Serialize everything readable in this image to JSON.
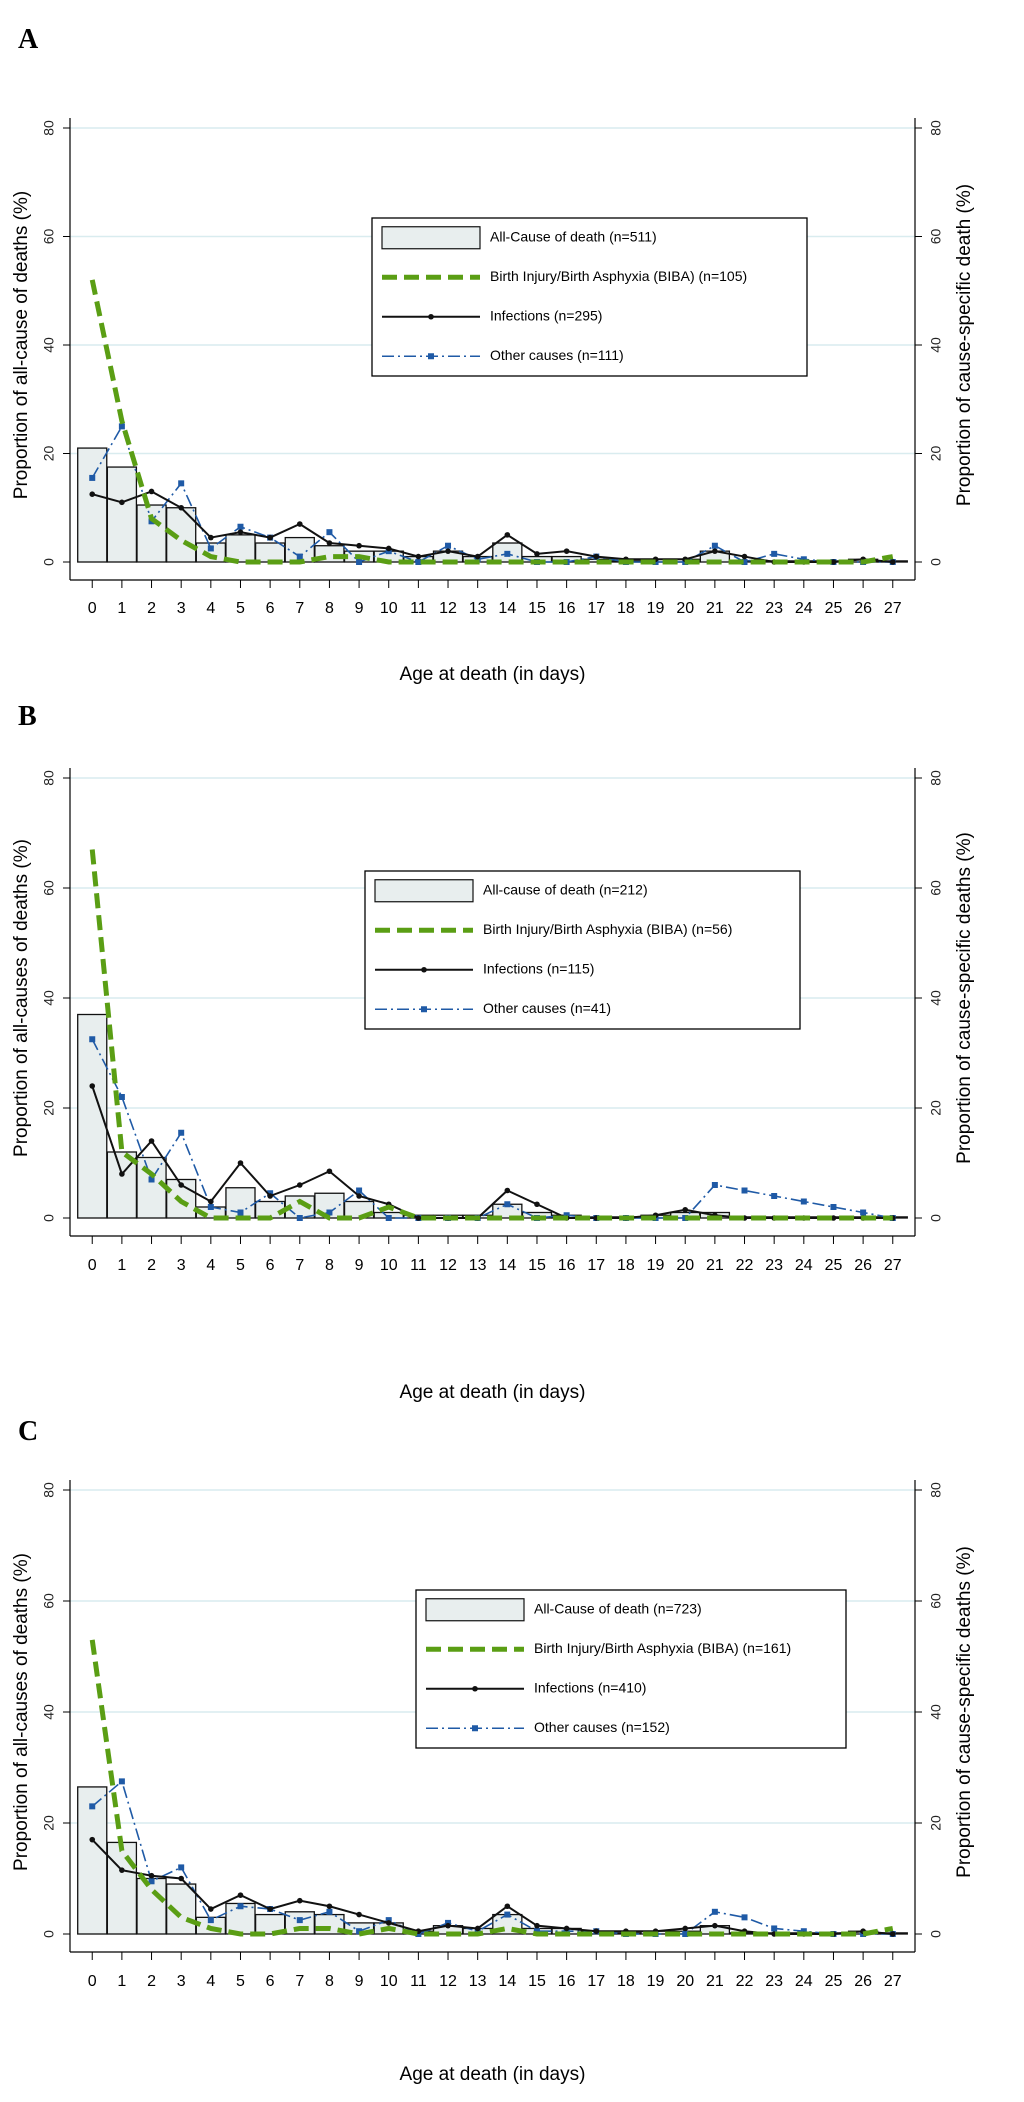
{
  "chart_data": [
    {
      "panel": "A",
      "type": "bar+line",
      "categories": [
        "0",
        "1",
        "2",
        "3",
        "4",
        "5",
        "6",
        "7",
        "8",
        "9",
        "10",
        "11",
        "12",
        "13",
        "14",
        "15",
        "16",
        "17",
        "18",
        "19",
        "20",
        "21",
        "22",
        "23",
        "24",
        "25",
        "26",
        "27"
      ],
      "xlabel": "Age at death (in days)",
      "ylabel_left": "Proportion of all-cause of deaths (%)",
      "ylabel_right": "Proportion of cause-specific death (%)",
      "ylim": [
        0,
        80
      ],
      "yticks": [
        "0",
        "20",
        "40",
        "60",
        "80"
      ],
      "grid": true,
      "legend_position": "top-right",
      "series": [
        {
          "name": "All-Cause of death (n=511)",
          "kind": "bar",
          "values": [
            21,
            17.5,
            10.5,
            10,
            3.5,
            5,
            3.5,
            4.5,
            3,
            2,
            2,
            1,
            2,
            1,
            3.5,
            1,
            1,
            0.5,
            0.2,
            0.5,
            0.5,
            2,
            0.2,
            0.2,
            0.2,
            0.2,
            0.5,
            0.2
          ]
        },
        {
          "name": "Birth Injury/Birth Asphyxia (BIBA) (n=105)",
          "kind": "biba",
          "values": [
            52,
            26,
            8,
            4,
            1,
            0,
            0,
            0,
            1,
            1,
            0,
            0,
            0,
            0,
            0,
            0,
            0,
            0,
            0,
            0,
            0,
            0,
            0,
            0,
            0,
            0,
            0,
            1
          ]
        },
        {
          "name": "Infections (n=295)",
          "kind": "infections",
          "values": [
            12.5,
            11,
            13,
            10,
            4.5,
            5.5,
            4.5,
            7,
            3.5,
            3,
            2.5,
            1,
            2,
            1,
            5,
            1.5,
            2,
            1,
            0.5,
            0.5,
            0.5,
            2,
            1,
            0,
            0,
            0,
            0.5,
            0
          ]
        },
        {
          "name": "Other causes (n=111)",
          "kind": "other",
          "values": [
            15.5,
            25,
            7.5,
            14.5,
            2.5,
            6.5,
            4.5,
            1,
            5.5,
            0,
            2,
            0,
            3,
            0.5,
            1.5,
            0,
            0,
            1,
            0,
            0,
            0,
            3,
            0,
            1.5,
            0.5,
            0,
            0,
            0
          ]
        }
      ]
    },
    {
      "panel": "B",
      "type": "bar+line",
      "categories": [
        "0",
        "1",
        "2",
        "3",
        "4",
        "5",
        "6",
        "7",
        "8",
        "9",
        "10",
        "11",
        "12",
        "13",
        "14",
        "15",
        "16",
        "17",
        "18",
        "19",
        "20",
        "21",
        "22",
        "23",
        "24",
        "25",
        "26",
        "27"
      ],
      "xlabel": "Age at death (in days)",
      "ylabel_left": "Proportion of  all-causes of deaths (%)",
      "ylabel_right": "Proportion of cause-specific deaths (%)",
      "ylim": [
        0,
        80
      ],
      "yticks": [
        "0",
        "20",
        "40",
        "60",
        "80"
      ],
      "grid": true,
      "legend_position": "top-right",
      "series": [
        {
          "name": "All-cause of death (n=212)",
          "kind": "bar",
          "values": [
            37,
            12,
            11,
            7,
            2,
            5.5,
            3,
            4,
            4.5,
            3,
            1,
            0.5,
            0.5,
            0.5,
            2.5,
            1,
            0.5,
            0.2,
            0.2,
            0.5,
            1,
            1,
            0.2,
            0.2,
            0.2,
            0.2,
            0.2,
            0.2
          ]
        },
        {
          "name": "Birth Injury/Birth Asphyxia (BIBA) (n=56)",
          "kind": "biba",
          "values": [
            67,
            12,
            8,
            3,
            0,
            0,
            0,
            3,
            0,
            0,
            2,
            0,
            0,
            0,
            0,
            0,
            0,
            0,
            0,
            0,
            0,
            0,
            0,
            0,
            0,
            0,
            0,
            0
          ]
        },
        {
          "name": "Infections (n=115)",
          "kind": "infections",
          "values": [
            24,
            8,
            14,
            6,
            3,
            10,
            4,
            6,
            8.5,
            4,
            2.5,
            0,
            0,
            0,
            5,
            2.5,
            0,
            0,
            0,
            0.5,
            1.5,
            0.5,
            0,
            0,
            0,
            0,
            0,
            0
          ]
        },
        {
          "name": "Other causes (n=41)",
          "kind": "other",
          "values": [
            32.5,
            22,
            7,
            15.5,
            2,
            1,
            4.5,
            0,
            1,
            5,
            0,
            0,
            0,
            0,
            2.5,
            0,
            0.5,
            0,
            0,
            0,
            0,
            6,
            5,
            4,
            3,
            2,
            1,
            0
          ]
        }
      ]
    },
    {
      "panel": "C",
      "type": "bar+line",
      "categories": [
        "0",
        "1",
        "2",
        "3",
        "4",
        "5",
        "6",
        "7",
        "8",
        "9",
        "10",
        "11",
        "12",
        "13",
        "14",
        "15",
        "16",
        "17",
        "18",
        "19",
        "20",
        "21",
        "22",
        "23",
        "24",
        "25",
        "26",
        "27"
      ],
      "xlabel": "Age at death (in days)",
      "ylabel_left": "Proportion of all-causes of deaths (%)",
      "ylabel_right": "Proportion of cause-specific deaths (%)",
      "ylim": [
        0,
        80
      ],
      "yticks": [
        "0",
        "20",
        "40",
        "60",
        "80"
      ],
      "grid": true,
      "legend_position": "top-right",
      "series": [
        {
          "name": "All-Cause of death (n=723)",
          "kind": "bar",
          "values": [
            26.5,
            16.5,
            10,
            9,
            3,
            5.5,
            3.5,
            4,
            3.5,
            2,
            2,
            0.5,
            1.5,
            1,
            3.5,
            1,
            1,
            0.5,
            0.2,
            0.5,
            0.5,
            1.5,
            0.2,
            0.2,
            0.2,
            0.2,
            0.5,
            0.2
          ]
        },
        {
          "name": "Birth Injury/Birth Asphyxia (BIBA) (n=161)",
          "kind": "biba",
          "values": [
            53,
            15,
            8,
            3,
            1,
            0,
            0,
            1,
            1,
            0,
            1,
            0,
            0,
            0,
            1,
            0,
            0,
            0,
            0,
            0,
            0,
            0,
            0,
            0,
            0,
            0,
            0,
            1
          ]
        },
        {
          "name": "Infections (n=410)",
          "kind": "infections",
          "values": [
            17,
            11.5,
            10.5,
            10,
            4.5,
            7,
            4.5,
            6,
            5,
            3.5,
            2,
            0.5,
            1.5,
            1,
            5,
            1.5,
            1,
            0.5,
            0.5,
            0.5,
            1,
            1.5,
            0.5,
            0,
            0,
            0,
            0.5,
            0
          ]
        },
        {
          "name": "Other causes (n=152)",
          "kind": "other",
          "values": [
            23,
            27.5,
            9.5,
            12,
            2.5,
            5,
            4.5,
            2.5,
            4,
            0.5,
            2.5,
            0,
            2,
            0.5,
            3.5,
            0.5,
            0.5,
            0.5,
            0,
            0,
            0,
            4,
            3,
            1,
            0.5,
            0,
            0,
            0
          ]
        }
      ]
    }
  ],
  "colors": {
    "bar_fill": "#e8eeee",
    "bar_stroke": "#111111",
    "biba": "#5a9e14",
    "infections": "#111111",
    "other": "#1f5aa6",
    "grid": "#d9ecef"
  }
}
